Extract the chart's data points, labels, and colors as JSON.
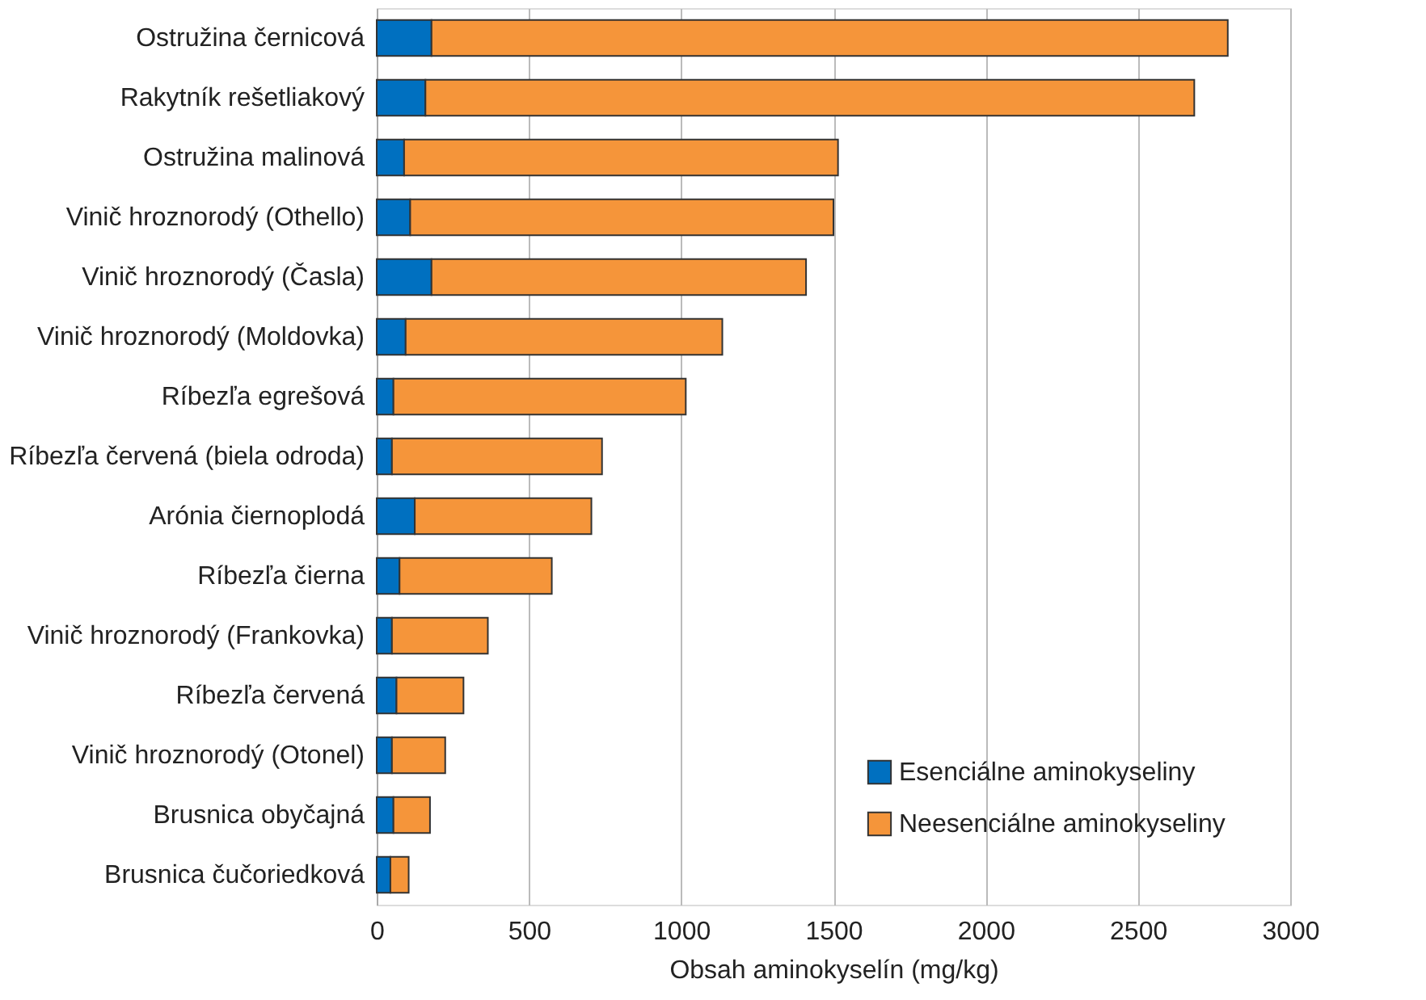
{
  "chart_data": {
    "type": "bar",
    "orientation": "horizontal",
    "stacked": true,
    "categories": [
      "Ostružina černicová",
      "Rakytník rešetliakový",
      "Ostružina malinová",
      "Vinič hroznorodý (Othello)",
      "Vinič hroznorodý (Časla)",
      "Vinič hroznorodý (Moldovka)",
      "Ríbezľa egrešová",
      "Ríbezľa červená (biela odroda)",
      "Arónia čiernoplodá",
      "Ríbezľa čierna",
      "Vinič hroznorodý (Frankovka)",
      "Ríbezľa červená",
      "Vinič hroznorodý (Otonel)",
      "Brusnica obyčajná",
      "Brusnica čučoriedková"
    ],
    "series": [
      {
        "name": "Esenciálne aminokyseliny",
        "color": "#0070c0",
        "values": [
          180,
          160,
          90,
          110,
          180,
          95,
          55,
          50,
          125,
          75,
          50,
          65,
          50,
          55,
          45
        ]
      },
      {
        "name": "Neesenciálne aminokyseliny",
        "color": "#f5953a",
        "values": [
          2615,
          2525,
          1425,
          1390,
          1230,
          1040,
          960,
          690,
          580,
          500,
          315,
          220,
          175,
          120,
          60
        ]
      }
    ],
    "xlabel": "Obsah aminokyselín (mg/kg)",
    "xlim": [
      0,
      3000
    ],
    "xticks": [
      0,
      500,
      1000,
      1500,
      2000,
      2500,
      3000
    ],
    "grid": "x",
    "legend": "bottom right"
  }
}
